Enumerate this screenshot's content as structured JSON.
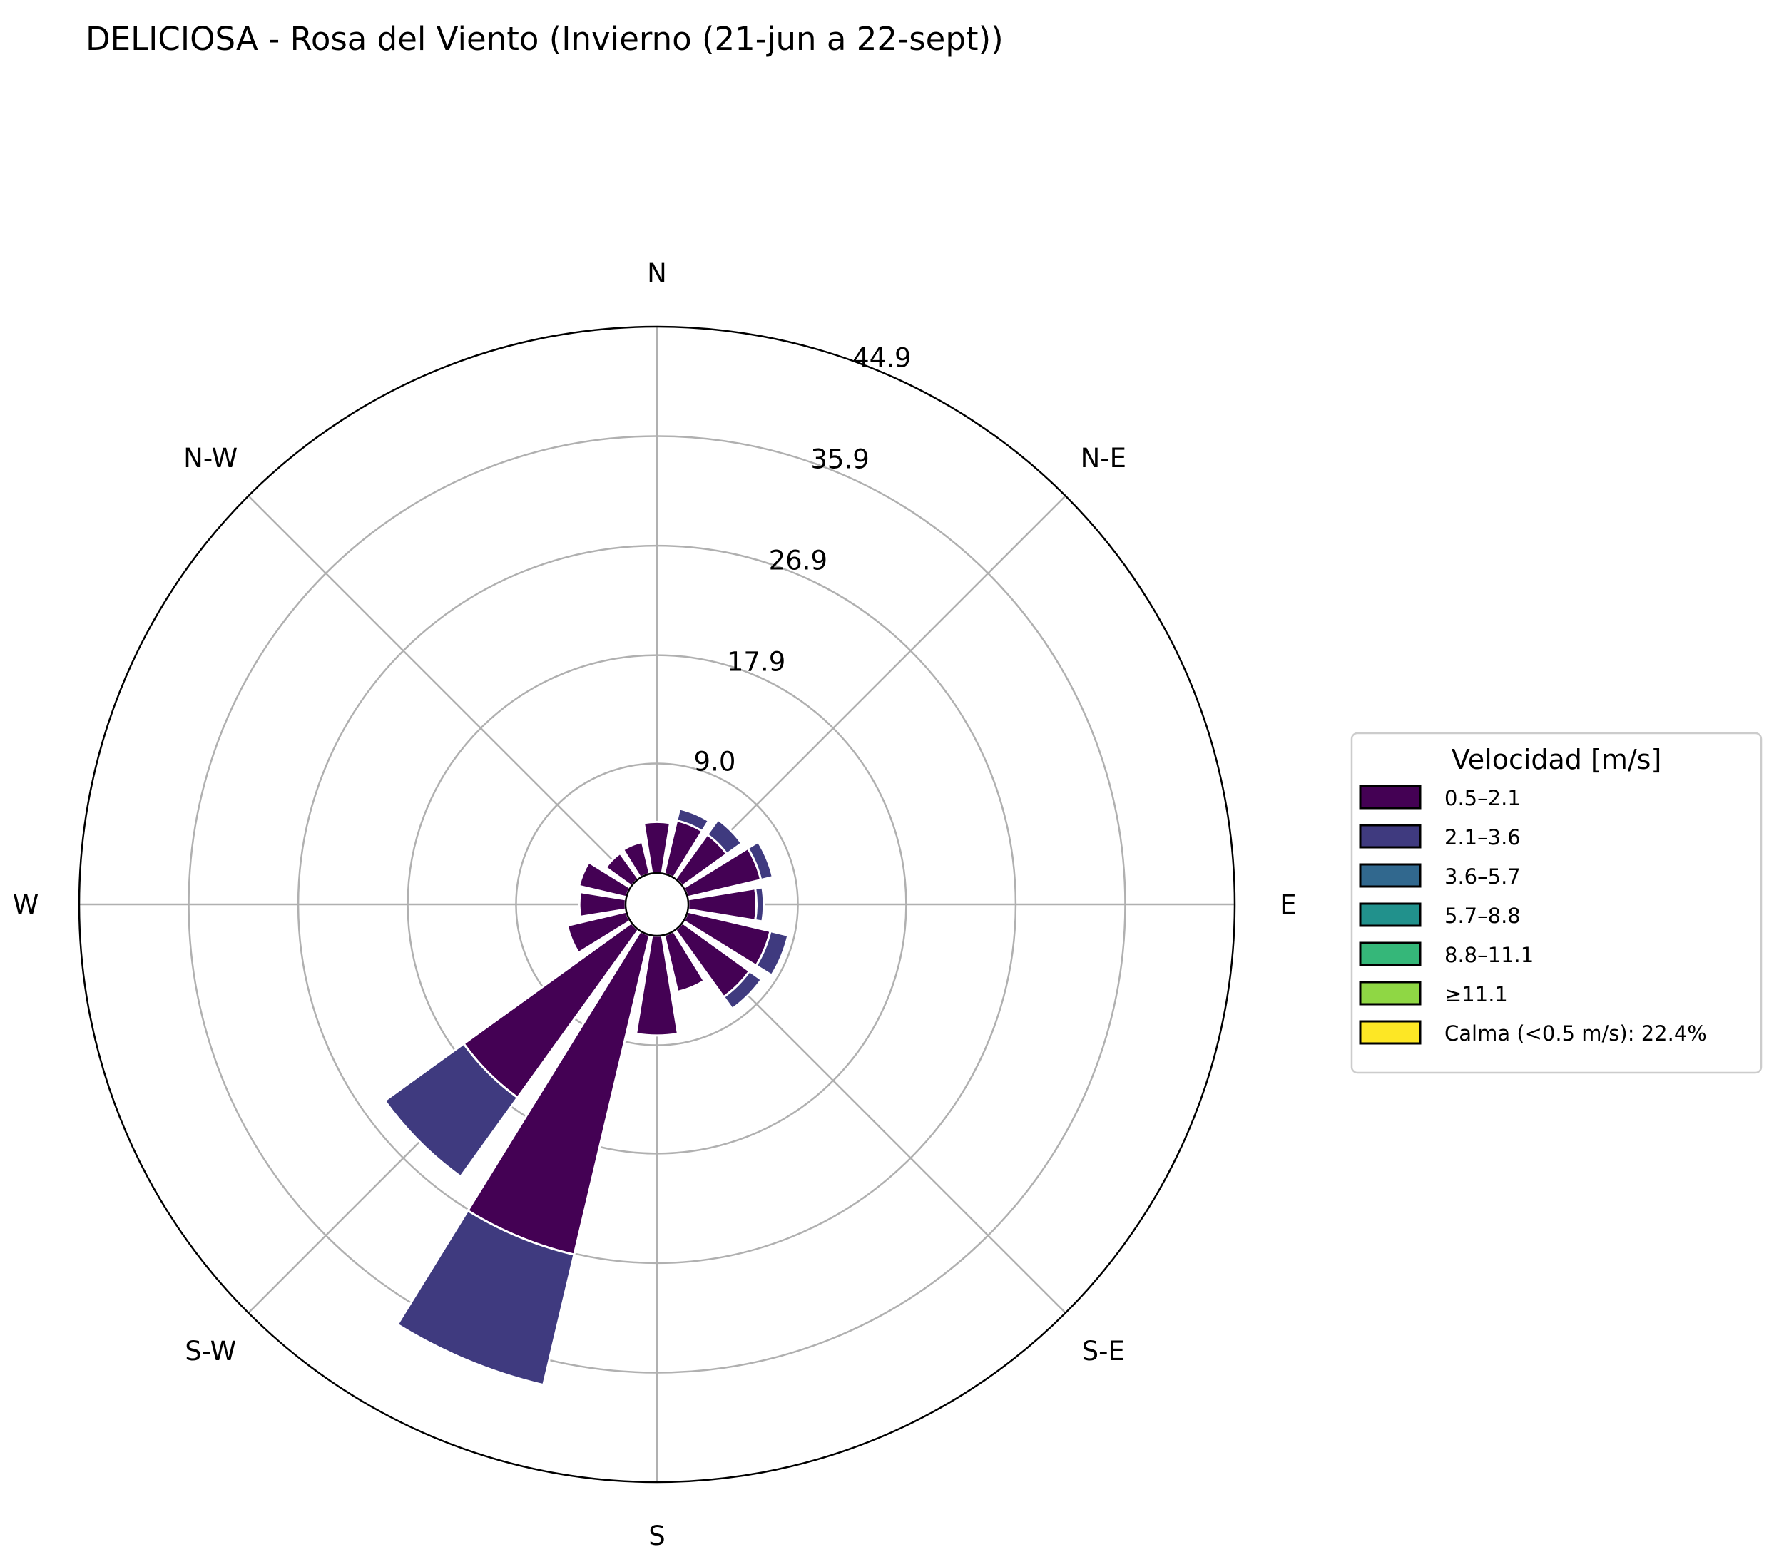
{
  "chart_data": {
    "type": "windrose",
    "title": "DELICIOSA - Rosa del Viento (Invierno (21-jun a 22-sept))",
    "directions": [
      "N",
      "N-E",
      "E",
      "S-E",
      "S",
      "S-W",
      "W",
      "N-W"
    ],
    "radial_ticks": [
      "9.0",
      "17.9",
      "26.9",
      "35.9",
      "44.9"
    ],
    "radial_tick_values": [
      9.0,
      17.9,
      26.9,
      35.9,
      44.9
    ],
    "rmax": 44.9,
    "calm_percent": 22.4,
    "legend": {
      "title": "Velocidad [m/s]",
      "placement": "right",
      "entries": [
        {
          "label": "0.5–2.1",
          "color": "#440154"
        },
        {
          "label": "2.1–3.6",
          "color": "#3f3a7f"
        },
        {
          "label": "3.6–5.7",
          "color": "#31688e"
        },
        {
          "label": "5.7–8.8",
          "color": "#21918c"
        },
        {
          "label": "8.8–11.1",
          "color": "#35b779"
        },
        {
          "label": "≥11.1",
          "color": "#8fd744"
        },
        {
          "label": "Calma (<0.5 m/s): 22.4%",
          "color": "#fde725"
        }
      ]
    },
    "sector_angles_deg": [
      0,
      22.5,
      45,
      67.5,
      90,
      112.5,
      135,
      157.5,
      180,
      202.5,
      225,
      247.5,
      270,
      292.5,
      315,
      337.5
    ],
    "series": [
      {
        "name": "0.5–2.1",
        "values": [
          4.2,
          4.5,
          4.5,
          6.2,
          5.6,
          7.0,
          6.8,
          4.8,
          8.2,
          27.0,
          17.0,
          5.0,
          3.8,
          4.0,
          2.6,
          2.7
        ]
      },
      {
        "name": "2.1–3.6",
        "values": [
          0.0,
          1.0,
          1.5,
          1.0,
          0.6,
          1.5,
          1.2,
          0.0,
          0.0,
          11.0,
          8.0,
          0.0,
          0.0,
          0.0,
          0.0,
          0.0
        ]
      }
    ]
  }
}
